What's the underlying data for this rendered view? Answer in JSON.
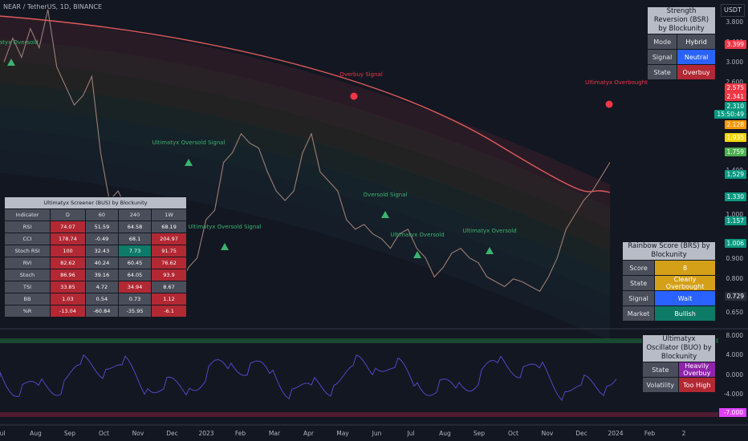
{
  "header": {
    "title": "NEAR / TetherUS, 1D, BINANCE",
    "currency": "USDT"
  },
  "chart_data": {
    "type": "line",
    "x": [
      "Jul",
      "Aug",
      "Sep",
      "Oct",
      "Nov",
      "Dec",
      "2023",
      "Feb",
      "Mar",
      "Apr",
      "May",
      "Jun",
      "Jul",
      "Aug",
      "Sep",
      "Oct",
      "Nov",
      "Dec",
      "2024",
      "Feb",
      "2"
    ],
    "price_ticks": [
      "3.800",
      "3.400",
      "3.000",
      "2.600",
      "2.200",
      "1.800",
      "1.400",
      "1.000",
      "0.900",
      "0.800",
      "0.650"
    ],
    "price_labels": [
      {
        "text": "3.399",
        "color": "#f23645"
      },
      {
        "text": "2.575",
        "color": "#f23645"
      },
      {
        "text": "2.341",
        "color": "#f23645"
      },
      {
        "text": "2.310",
        "color": "#089981"
      },
      {
        "text": "15:50:49",
        "color": "#089981"
      },
      {
        "text": "2.128",
        "color": "#ff9800"
      },
      {
        "text": "1.935",
        "color": "#f5d60a"
      },
      {
        "text": "1.759",
        "color": "#4caf50"
      },
      {
        "text": "1.529",
        "color": "#089981"
      },
      {
        "text": "1.330",
        "color": "#089981"
      },
      {
        "text": "1.157",
        "color": "#089981"
      },
      {
        "text": "1.006",
        "color": "#089981"
      },
      {
        "text": "0.729",
        "color": "#2a2e39"
      }
    ],
    "osc_ticks": [
      "8.000",
      "4.000",
      "0.000",
      "-4.000"
    ],
    "osc_label": {
      "text": "-7.000",
      "color": "#e040fb"
    },
    "price_series": [
      3.35,
      3.6,
      3.4,
      3.7,
      3.5,
      3.9,
      3.3,
      3.1,
      2.9,
      3.0,
      3.2,
      2.4,
      1.9,
      2.0,
      1.8,
      1.6,
      1.5,
      1.35,
      1.1,
      1.15,
      1.0,
      1.2,
      1.3,
      1.7,
      1.8,
      2.3,
      2.4,
      2.6,
      2.5,
      2.45,
      2.2,
      2.0,
      1.9,
      2.0,
      2.4,
      2.6,
      2.2,
      2.1,
      2.0,
      1.7,
      1.6,
      1.65,
      1.55,
      1.5,
      1.4,
      1.55,
      1.6,
      1.4,
      1.3,
      1.1,
      1.2,
      1.35,
      1.4,
      1.3,
      1.25,
      1.1,
      1.05,
      1.0,
      1.08,
      1.05,
      1.0,
      0.95,
      1.1,
      1.3,
      1.6,
      1.75,
      1.9,
      2.0,
      2.15,
      2.3
    ],
    "signals": [
      {
        "text": "Ultimatyx Oversold",
        "kind": "oversold"
      },
      {
        "text": "Ultimatyx Oversold Signal",
        "kind": "oversold"
      },
      {
        "text": "Ultimatyx Oversold Signal",
        "kind": "oversold"
      },
      {
        "text": "Overbuy Signal",
        "kind": "overbuy"
      },
      {
        "text": "Oversold Signal",
        "kind": "oversold"
      },
      {
        "text": "Ultimatyx Oversold",
        "kind": "oversold"
      },
      {
        "text": "Ultimatyx Oversold",
        "kind": "oversold"
      },
      {
        "text": "Ultimatyx Overbought",
        "kind": "overbuy"
      }
    ]
  },
  "bsr": {
    "title": "Strength Reversion (BSR) by Blockunity",
    "rows": [
      {
        "label": "Mode",
        "value": "Hybrid",
        "color": "#4a4e5a"
      },
      {
        "label": "Signal",
        "value": "Neutral",
        "color": "#2962ff"
      },
      {
        "label": "State",
        "value": "Overbuy",
        "color": "#b22833"
      }
    ]
  },
  "brs": {
    "title": "Rainbow Score (BRS) by Blockunity",
    "rows": [
      {
        "label": "Score",
        "value": "8",
        "color": "#d4a017"
      },
      {
        "label": "State",
        "value": "Clearly Overbought",
        "color": "#d4a017"
      },
      {
        "label": "Signal",
        "value": "Wait",
        "color": "#2962ff"
      },
      {
        "label": "Market",
        "value": "Bullish",
        "color": "#0e7a68"
      }
    ]
  },
  "buo": {
    "title": "Ultimatyx Oscillator (BUO) by Blockunity",
    "rows": [
      {
        "label": "State",
        "value": "Heavily Overbuy",
        "color": "#8e24aa"
      },
      {
        "label": "Volatility",
        "value": "Too High",
        "color": "#b22833"
      }
    ]
  },
  "screener": {
    "title": "Ultimatyx Screener (BUS) by Blockunity",
    "headers": [
      "Indicator",
      "D",
      "60",
      "240",
      "1W"
    ],
    "rows": [
      {
        "name": "RSI",
        "vals": [
          "74.07",
          "51.59",
          "64.58",
          "68.19"
        ],
        "colors": [
          "#b22833",
          "#4a4e5a",
          "#4a4e5a",
          "#4a4e5a"
        ]
      },
      {
        "name": "CCI",
        "vals": [
          "178.74",
          "-0.49",
          "68.1",
          "204.97"
        ],
        "colors": [
          "#b22833",
          "#4a4e5a",
          "#4a4e5a",
          "#b22833"
        ]
      },
      {
        "name": "Stoch RSI",
        "vals": [
          "100",
          "32.43",
          "7.73",
          "91.75"
        ],
        "colors": [
          "#b22833",
          "#4a4e5a",
          "#0e7a68",
          "#b22833"
        ]
      },
      {
        "name": "RVI",
        "vals": [
          "82.62",
          "40.24",
          "60.45",
          "76.62"
        ],
        "colors": [
          "#b22833",
          "#4a4e5a",
          "#4a4e5a",
          "#b22833"
        ]
      },
      {
        "name": "Stoch",
        "vals": [
          "86.96",
          "39.16",
          "64.05",
          "93.9"
        ],
        "colors": [
          "#b22833",
          "#4a4e5a",
          "#4a4e5a",
          "#b22833"
        ]
      },
      {
        "name": "TSI",
        "vals": [
          "33.85",
          "4.72",
          "34.94",
          "8.67"
        ],
        "colors": [
          "#b22833",
          "#4a4e5a",
          "#b22833",
          "#4a4e5a"
        ]
      },
      {
        "name": "BB",
        "vals": [
          "1.03",
          "0.54",
          "0.73",
          "1.12"
        ],
        "colors": [
          "#b22833",
          "#4a4e5a",
          "#4a4e5a",
          "#b22833"
        ]
      },
      {
        "name": "%R",
        "vals": [
          "-13.04",
          "-60.84",
          "-35.95",
          "-6.1"
        ],
        "colors": [
          "#b22833",
          "#4a4e5a",
          "#4a4e5a",
          "#b22833"
        ]
      }
    ]
  }
}
